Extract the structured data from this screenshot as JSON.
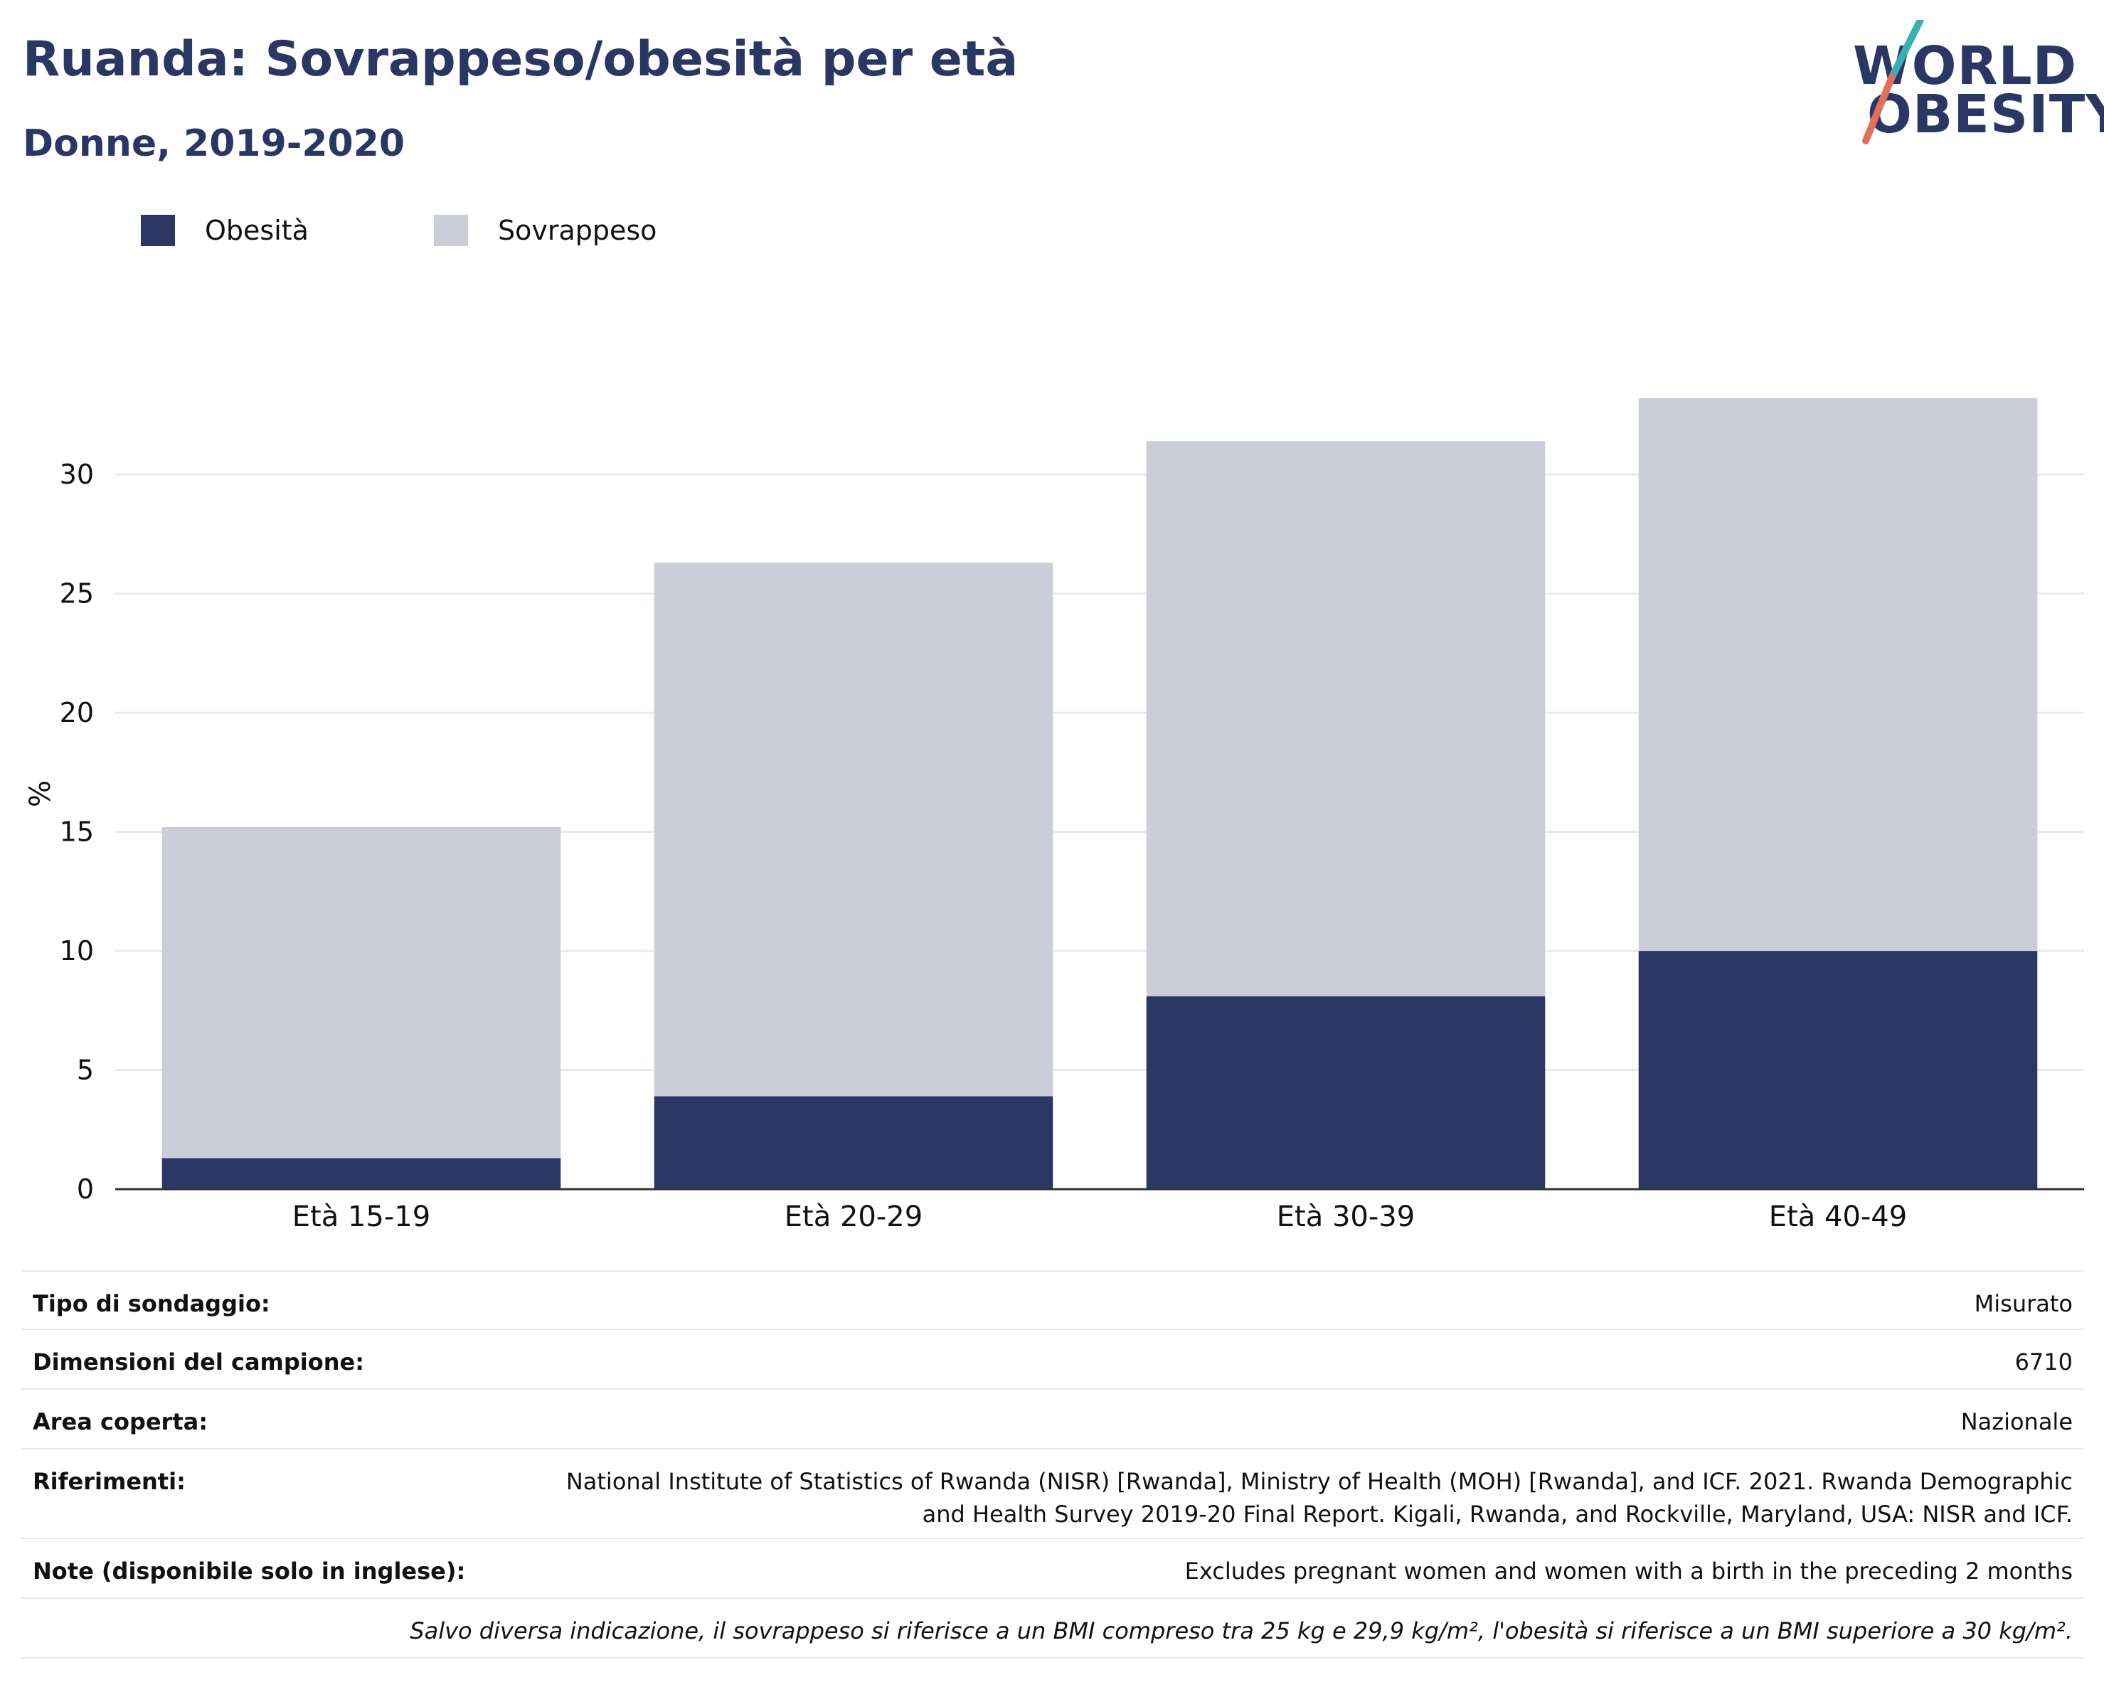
{
  "header": {
    "title": "Ruanda: Sovrappeso/obesità per età",
    "subtitle": "Donne, 2019-2020"
  },
  "logo": {
    "line1": "WORLD",
    "line2": "OBESITY"
  },
  "colors": {
    "obesity": "#2a3663",
    "overweight": "#cbcdd8",
    "accent_teal": "#3ab0b4",
    "accent_red": "#e0705c",
    "title": "#2a3663"
  },
  "legend": [
    {
      "label": "Obesità",
      "color": "#2a3663"
    },
    {
      "label": "Sovrappeso",
      "color": "#cbcdd8"
    }
  ],
  "chart_data": {
    "type": "bar",
    "stacked": true,
    "categories": [
      "Età 15-19",
      "Età 20-29",
      "Età 30-39",
      "Età 40-49"
    ],
    "series": [
      {
        "name": "Obesità",
        "values": [
          1.3,
          3.9,
          8.1,
          10.0
        ]
      },
      {
        "name": "Sovrappeso",
        "values": [
          13.9,
          22.4,
          23.3,
          23.2
        ]
      }
    ],
    "ylabel": "%",
    "ylim": [
      0,
      33.2
    ],
    "yticks": [
      0,
      5,
      10,
      15,
      20,
      25,
      30
    ],
    "grid": true,
    "legend_position": "top-left"
  },
  "info": {
    "rows": [
      {
        "label": "Tipo di sondaggio:",
        "value": "Misurato"
      },
      {
        "label": "Dimensioni del campione:",
        "value": "6710"
      },
      {
        "label": "Area coperta:",
        "value": "Nazionale"
      },
      {
        "label": "Riferimenti:",
        "value_line1": "National Institute of Statistics of Rwanda (NISR) [Rwanda], Ministry of Health (MOH) [Rwanda], and ICF. 2021. Rwanda Demographic",
        "value_line2": "and Health Survey 2019-20 Final Report. Kigali, Rwanda, and Rockville, Maryland, USA: NISR and ICF."
      },
      {
        "label": "Note (disponibile solo in inglese):",
        "value": "Excludes pregnant women and women with a birth in the preceding 2 months"
      }
    ],
    "footnote": "Salvo diversa indicazione, il sovrappeso si riferisce a un BMI compreso tra 25 kg e 29,9 kg/m², l'obesità si riferisce a un BMI superiore a 30 kg/m²."
  }
}
